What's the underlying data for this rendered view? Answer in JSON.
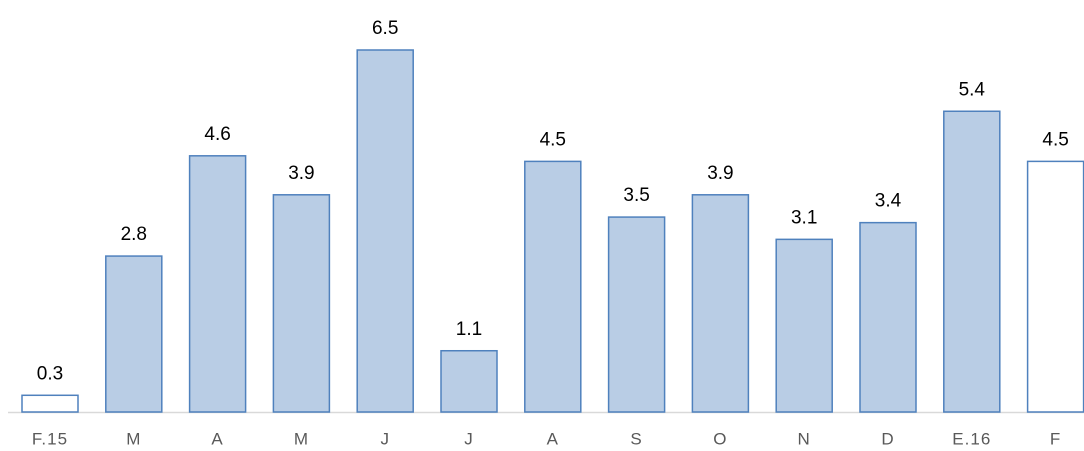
{
  "chart_data": {
    "type": "bar",
    "categories": [
      "F.15",
      "M",
      "A",
      "M",
      "J",
      "J",
      "A",
      "S",
      "O",
      "N",
      "D",
      "E.16",
      "F"
    ],
    "values": [
      0.3,
      2.8,
      4.6,
      3.9,
      6.5,
      1.1,
      4.5,
      3.5,
      3.9,
      3.1,
      3.4,
      5.4,
      4.5
    ],
    "colors": [
      "#ffffff",
      "#b9cde5",
      "#b9cde5",
      "#b9cde5",
      "#b9cde5",
      "#b9cde5",
      "#b9cde5",
      "#b9cde5",
      "#b9cde5",
      "#b9cde5",
      "#b9cde5",
      "#b9cde5",
      "#ffffff"
    ],
    "edge_color": "#4f81bd",
    "ylim": [
      0,
      6.5
    ]
  }
}
